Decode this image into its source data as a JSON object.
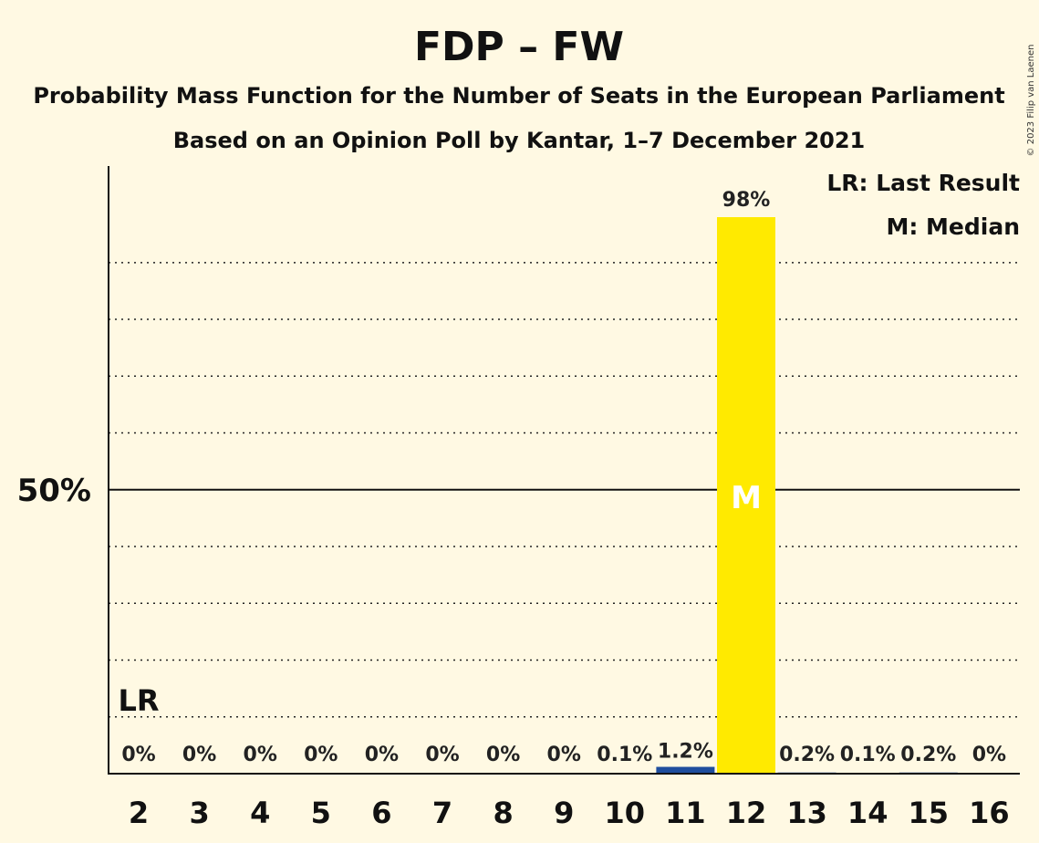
{
  "title": "FDP – FW",
  "subtitle1": "Probability Mass Function for the Number of Seats in the European Parliament",
  "subtitle2": "Based on an Opinion Poll by Kantar, 1–7 December 2021",
  "legend": {
    "lr": "LR: Last Result",
    "m": "M: Median"
  },
  "copyright": "© 2023 Filip van Laenen",
  "colors": {
    "background": "#FFF9E3",
    "median_bar": "#FFEA00",
    "bar": "#1F4E9E"
  },
  "chart_data": {
    "type": "bar",
    "categories": [
      "2",
      "3",
      "4",
      "5",
      "6",
      "7",
      "8",
      "9",
      "10",
      "11",
      "12",
      "13",
      "14",
      "15",
      "16"
    ],
    "values": [
      0,
      0,
      0,
      0,
      0,
      0,
      0,
      0,
      0.1,
      1.2,
      98,
      0.2,
      0.1,
      0.2,
      0
    ],
    "labels": [
      "0%",
      "0%",
      "0%",
      "0%",
      "0%",
      "0%",
      "0%",
      "0%",
      "0.1%",
      "1.2%",
      "98%",
      "0.2%",
      "0.1%",
      "0.2%",
      "0%"
    ],
    "ytick_label": "50%",
    "ytick_value": 50,
    "ylim": [
      0,
      107
    ],
    "gridlines": [
      10,
      20,
      30,
      40,
      60,
      70,
      80,
      90
    ],
    "last_result": "2",
    "last_result_marker": "LR",
    "median": "12",
    "median_marker": "M"
  }
}
